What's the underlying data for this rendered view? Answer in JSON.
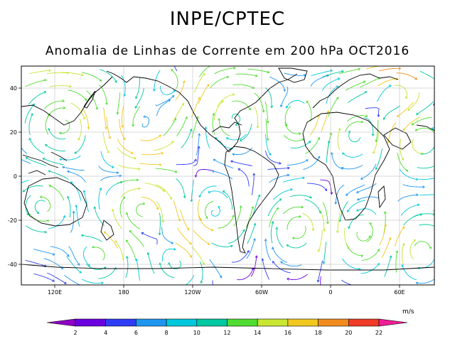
{
  "title": "INPE/CPTEC",
  "subtitle": "Anomalia de Linhas de Corrente em 200 hPa OCT2016",
  "map": {
    "lat_ticks": [
      {
        "value": 40,
        "label": "40"
      },
      {
        "value": 20,
        "label": "20"
      },
      {
        "value": 0,
        "label": "0"
      },
      {
        "value": -20,
        "label": "-20"
      },
      {
        "value": -40,
        "label": "-40"
      }
    ],
    "lon_ticks": [
      "120E",
      "180",
      "120W",
      "60W",
      "0",
      "60E"
    ]
  },
  "colorbar": {
    "units": "m/s",
    "ticks": [
      "2",
      "4",
      "6",
      "8",
      "10",
      "12",
      "14",
      "16",
      "18",
      "20",
      "22"
    ],
    "colors": [
      "#8e00c8",
      "#6a00e0",
      "#2e3cf5",
      "#1e96f0",
      "#00c8dc",
      "#00c8a0",
      "#50dc32",
      "#c8e632",
      "#f0c81e",
      "#f08c1e",
      "#f03c28",
      "#f01e96"
    ]
  }
}
